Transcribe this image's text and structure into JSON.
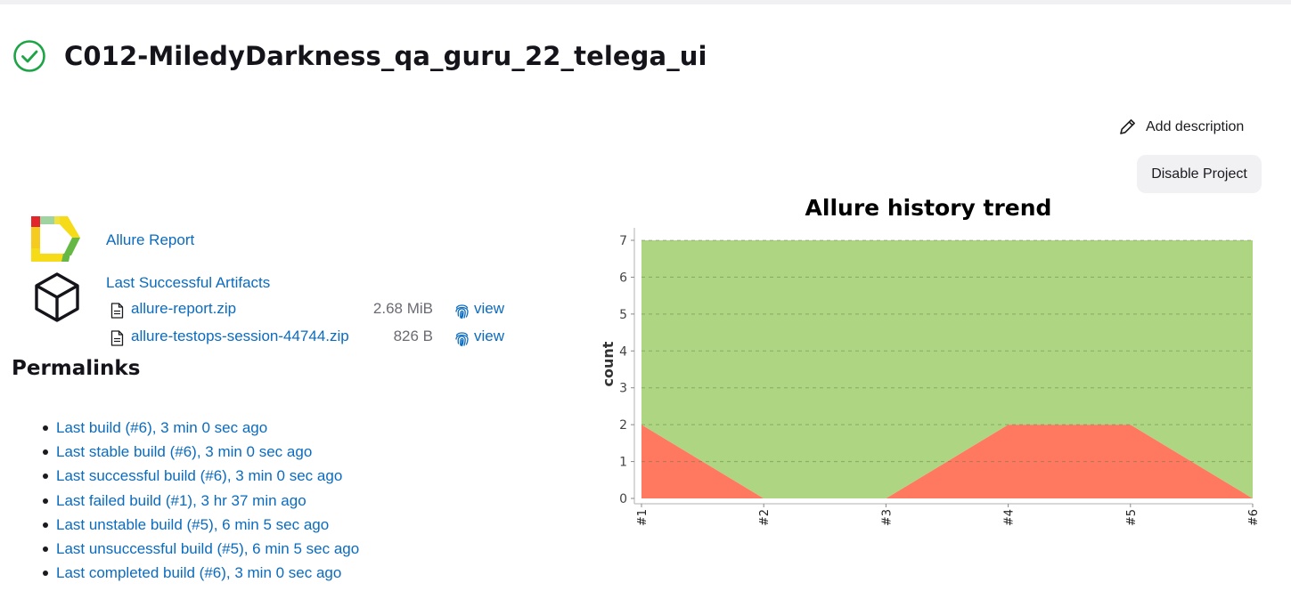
{
  "project": {
    "title": "C012-MiledyDarkness_qa_guru_22_telega_ui",
    "status_icon": "check-circle-icon",
    "status_color": "#1ea446"
  },
  "actions": {
    "add_description": "Add description",
    "disable_project": "Disable Project"
  },
  "links": {
    "allure_report": "Allure Report",
    "last_successful_artifacts": "Last Successful Artifacts"
  },
  "artifacts": [
    {
      "name": "allure-report.zip",
      "size": "2.68 MiB",
      "view": "view"
    },
    {
      "name": "allure-testops-session-44744.zip",
      "size": "826 B",
      "view": "view"
    }
  ],
  "permalinks": {
    "title": "Permalinks",
    "items": [
      "Last build (#6), 3 min 0 sec ago",
      "Last stable build (#6), 3 min 0 sec ago",
      "Last successful build (#6), 3 min 0 sec ago",
      "Last failed build (#1), 3 hr 37 min ago",
      "Last unstable build (#5), 6 min 5 sec ago",
      "Last unsuccessful build (#5), 6 min 5 sec ago",
      "Last completed build (#6), 3 min 0 sec ago"
    ]
  },
  "colors": {
    "link": "#0b6bbf",
    "passed": "#aed581",
    "failed": "#ff7961"
  },
  "chart_data": {
    "type": "area",
    "stacked": true,
    "title": "Allure history trend",
    "xlabel": "",
    "ylabel": "count",
    "categories": [
      "#1",
      "#2",
      "#3",
      "#4",
      "#5",
      "#6"
    ],
    "ylim": [
      0,
      7
    ],
    "yticks": [
      0,
      1,
      2,
      3,
      4,
      5,
      6,
      7
    ],
    "grid": true,
    "series": [
      {
        "color": "#ff7961",
        "values": [
          2,
          0,
          0,
          2,
          2,
          0
        ]
      },
      {
        "color": "#aed581",
        "values": [
          5,
          7,
          7,
          5,
          5,
          7
        ]
      }
    ]
  }
}
